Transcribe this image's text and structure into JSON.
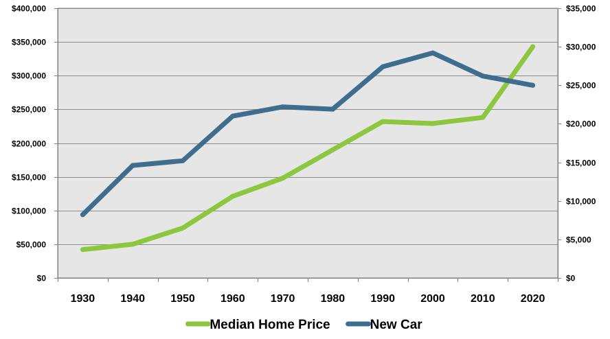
{
  "chart_data": {
    "type": "line",
    "categories": [
      "1930",
      "1940",
      "1950",
      "1960",
      "1970",
      "1980",
      "1990",
      "2000",
      "2010",
      "2020"
    ],
    "x": [
      1930,
      1940,
      1950,
      1960,
      1970,
      1980,
      1990,
      2000,
      2010,
      2020
    ],
    "series": [
      {
        "name": "Median Home Price",
        "axis": "left",
        "color": "#8dc63f",
        "x": [
          1930,
          1940,
          1950,
          1960,
          1970,
          1980,
          1990,
          2000,
          2010,
          2020
        ],
        "values": [
          42000,
          50000,
          74000,
          121000,
          148000,
          190000,
          232000,
          229000,
          238000,
          343000
        ]
      },
      {
        "name": "New Car",
        "axis": "right",
        "color": "#3e6d8e",
        "x": [
          1930,
          1940,
          1950,
          1960,
          1970,
          1980,
          1990,
          2000,
          2010,
          2020
        ],
        "values": [
          8200,
          14600,
          15200,
          21000,
          22200,
          21900,
          27400,
          29200,
          26200,
          25000
        ]
      }
    ],
    "y_left": {
      "ylim": [
        0,
        400000
      ],
      "ticks": [
        0,
        50000,
        100000,
        150000,
        200000,
        250000,
        300000,
        350000,
        400000
      ],
      "tick_labels": [
        "$0",
        "$50,000",
        "$100,000",
        "$150,000",
        "$200,000",
        "$250,000",
        "$300,000",
        "$350,000",
        "$400,000"
      ]
    },
    "y_right": {
      "ylim": [
        0,
        35000
      ],
      "ticks": [
        0,
        5000,
        10000,
        15000,
        20000,
        25000,
        30000,
        35000
      ],
      "tick_labels": [
        "$0",
        "$5,000",
        "$10,000",
        "$15,000",
        "$20,000",
        "$25,000",
        "$30,000",
        "$35,000"
      ]
    },
    "grid": true,
    "legend": "bottom",
    "plot_background": "#e6e6e6"
  }
}
